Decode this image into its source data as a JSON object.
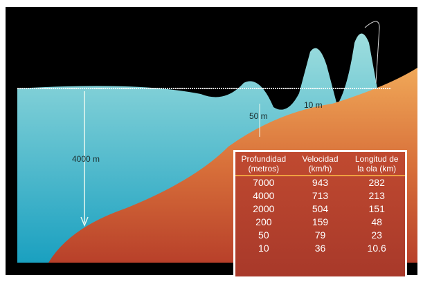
{
  "labels": {
    "depth": "4000 m",
    "wave_50": "50 m",
    "wave_10": "10 m"
  },
  "table": {
    "headers": [
      [
        "Profundidad",
        "(metros)"
      ],
      [
        "Velocidad",
        "(km/h)"
      ],
      [
        "Longitud de",
        "la ola (km)"
      ]
    ],
    "rows": [
      [
        "7000",
        "943",
        "282"
      ],
      [
        "4000",
        "713",
        "213"
      ],
      [
        "2000",
        "504",
        "151"
      ],
      [
        "200",
        "159",
        "48"
      ],
      [
        "50",
        "79",
        "23"
      ],
      [
        "10",
        "36",
        "10.6"
      ]
    ]
  }
}
